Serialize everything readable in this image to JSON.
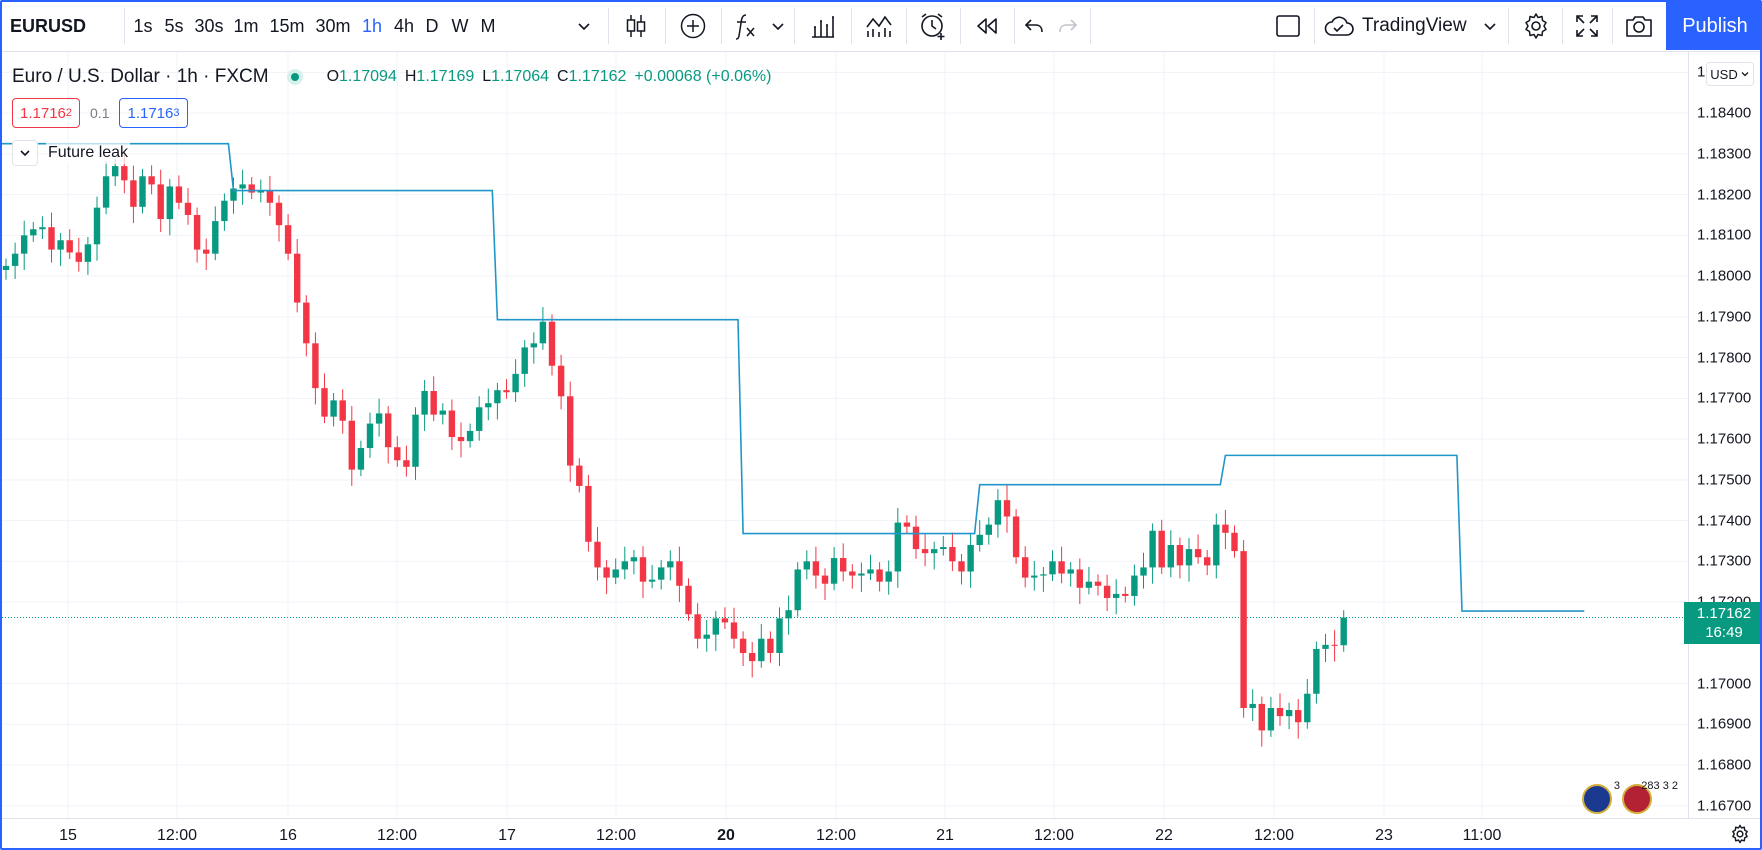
{
  "toolbar": {
    "symbol": "EURUSD",
    "intervals": [
      {
        "label": "1s",
        "active": false
      },
      {
        "label": "5s",
        "active": false
      },
      {
        "label": "30s",
        "active": false
      },
      {
        "label": "1m",
        "active": false
      },
      {
        "label": "15m",
        "active": false
      },
      {
        "label": "30m",
        "active": false
      },
      {
        "label": "1h",
        "active": true
      },
      {
        "label": "4h",
        "active": false
      },
      {
        "label": "D",
        "active": false
      },
      {
        "label": "W",
        "active": false
      },
      {
        "label": "M",
        "active": false
      }
    ],
    "indicators_icon": "fx-icon",
    "layout_name": "TradingView",
    "publish_label": "Publish"
  },
  "legend": {
    "title": "Euro / U.S. Dollar · 1h · FXCM",
    "o_label": "O",
    "o": "1.17094",
    "h_label": "H",
    "h": "1.17169",
    "l_label": "L",
    "l": "1.17064",
    "c_label": "C",
    "c": "1.17162",
    "change": "+0.00068 (+0.06%)"
  },
  "quote": {
    "bid_main": "1.1716",
    "bid_small": "2",
    "spread": "0.1",
    "ask_main": "1.1716",
    "ask_small": "3"
  },
  "study": {
    "name": "Future leak"
  },
  "price_axis": {
    "currency": "USD",
    "ticks": [
      "1.18500",
      "1.18400",
      "1.18300",
      "1.18200",
      "1.18100",
      "1.18000",
      "1.17900",
      "1.17800",
      "1.17700",
      "1.17600",
      "1.17500",
      "1.17400",
      "1.17300",
      "1.17200",
      "1.17000",
      "1.16900",
      "1.16800",
      "1.16700"
    ],
    "current_price": "1.17162",
    "countdown": "16:49"
  },
  "time_axis": {
    "ticks": [
      {
        "label": "15",
        "bold": false
      },
      {
        "label": "12:00",
        "bold": false
      },
      {
        "label": "16",
        "bold": false
      },
      {
        "label": "12:00",
        "bold": false
      },
      {
        "label": "17",
        "bold": false
      },
      {
        "label": "12:00",
        "bold": false
      },
      {
        "label": "20",
        "bold": true
      },
      {
        "label": "12:00",
        "bold": false
      },
      {
        "label": "21",
        "bold": false
      },
      {
        "label": "12:00",
        "bold": false
      },
      {
        "label": "22",
        "bold": false
      },
      {
        "label": "12:00",
        "bold": false
      },
      {
        "label": "23",
        "bold": false
      },
      {
        "label": "11:00",
        "bold": false
      }
    ]
  },
  "events": {
    "dividend_count": "3",
    "econ_text": "283 3 2"
  },
  "colors": {
    "up": "#089981",
    "down": "#f23645",
    "line": "#2196c8",
    "accent": "#2962ff"
  },
  "chart_data": {
    "type": "candlestick",
    "title": "Euro / U.S. Dollar · 1h · FXCM",
    "ylim": [
      1.1667,
      1.1855
    ],
    "close": [
      1.18025,
      1.18055,
      1.181,
      1.18115,
      1.1812,
      1.18065,
      1.18088,
      1.18058,
      1.18035,
      1.18078,
      1.18168,
      1.18245,
      1.1827,
      1.18235,
      1.1817,
      1.18245,
      1.18225,
      1.1814,
      1.1822,
      1.1818,
      1.1815,
      1.18065,
      1.18055,
      1.18135,
      1.18185,
      1.18215,
      1.18225,
      1.18205,
      1.1821,
      1.1818,
      1.18125,
      1.18055,
      1.17935,
      1.17835,
      1.17725,
      1.17655,
      1.17695,
      1.17645,
      1.17525,
      1.17578,
      1.17638,
      1.17663,
      1.1758,
      1.17548,
      1.17532,
      1.1766,
      1.17718,
      1.1766,
      1.1767,
      1.17605,
      1.17595,
      1.1762,
      1.17678,
      1.17688,
      1.1772,
      1.17715,
      1.1776,
      1.17825,
      1.17835,
      1.17888,
      1.1778,
      1.17705,
      1.17535,
      1.17485,
      1.17348,
      1.17285,
      1.1726,
      1.1728,
      1.173,
      1.1731,
      1.1725,
      1.17255,
      1.17285,
      1.173,
      1.1724,
      1.1717,
      1.1711,
      1.1712,
      1.1716,
      1.1715,
      1.1711,
      1.17075,
      1.17055,
      1.1711,
      1.17075,
      1.1716,
      1.1718,
      1.1728,
      1.173,
      1.17265,
      1.17245,
      1.17308,
      1.17275,
      1.17265,
      1.1727,
      1.1728,
      1.1725,
      1.17275,
      1.17395,
      1.17385,
      1.1733,
      1.1732,
      1.1733,
      1.17335,
      1.173,
      1.17275,
      1.1734,
      1.17365,
      1.1739,
      1.1745,
      1.1741,
      1.1731,
      1.1726,
      1.17265,
      1.17268,
      1.173,
      1.1727,
      1.1728,
      1.17235,
      1.1725,
      1.1724,
      1.1721,
      1.1722,
      1.17215,
      1.17265,
      1.17285,
      1.17375,
      1.17285,
      1.1734,
      1.1729,
      1.1733,
      1.1731,
      1.1729,
      1.1739,
      1.1737,
      1.17325,
      1.1694,
      1.1695,
      1.16885,
      1.1694,
      1.1692,
      1.16935,
      1.16905,
      1.16975,
      1.17085,
      1.17095,
      1.17094,
      1.17162
    ],
    "future_leak_line": [
      {
        "from": 0,
        "to": 24,
        "value": 1.18325
      },
      {
        "from": 25,
        "to": 53,
        "value": 1.1821
      },
      {
        "from": 54,
        "to": 80,
        "value": 1.17893
      },
      {
        "from": 81,
        "to": 106,
        "value": 1.17368
      },
      {
        "from": 107,
        "to": 133,
        "value": 1.17488
      },
      {
        "from": 134,
        "to": 159,
        "value": 1.1756
      },
      {
        "from": 160,
        "to": 173,
        "value": 1.17178
      }
    ]
  }
}
